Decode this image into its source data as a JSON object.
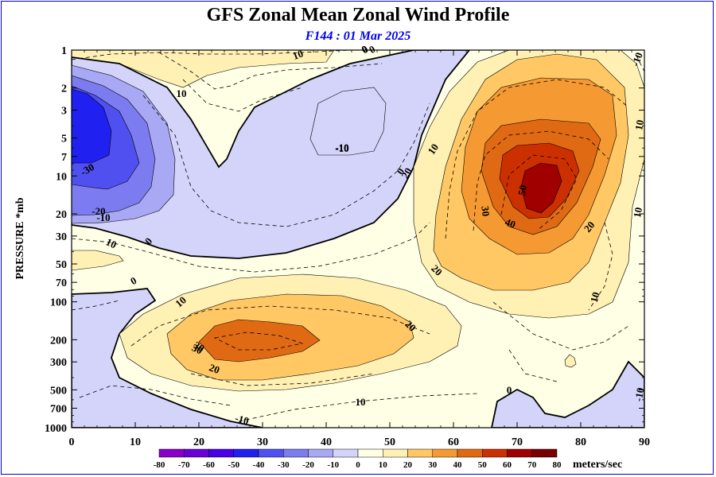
{
  "chart_data": {
    "type": "heatmap",
    "title": "GFS Zonal Mean Zonal Wind Profile",
    "subtitle": "F144 : 01 Mar 2025",
    "ylabel": "PRESSURE *mb",
    "xlabel": "",
    "x_ticks": [
      0,
      10,
      20,
      30,
      40,
      50,
      60,
      70,
      80,
      90
    ],
    "y_ticks": [
      1,
      2,
      3,
      5,
      7,
      10,
      20,
      30,
      50,
      70,
      100,
      200,
      300,
      500,
      700,
      1000
    ],
    "xlim": [
      0,
      90
    ],
    "ylim": [
      1000,
      1
    ],
    "y_scale": "log",
    "colorbar": {
      "unit_label": "meters/sec",
      "levels": [
        -80,
        -70,
        -60,
        -50,
        -40,
        -30,
        -20,
        -10,
        0,
        10,
        20,
        30,
        40,
        50,
        60,
        70,
        80
      ],
      "colors": [
        "#8a00c8",
        "#6a00d8",
        "#4a00e8",
        "#2020f0",
        "#5050f0",
        "#7c7cf0",
        "#a8a8f4",
        "#d4d4fa",
        "#ffffe6",
        "#fff0b4",
        "#ffc864",
        "#f59a32",
        "#e06a14",
        "#cc3000",
        "#a00000",
        "#780000",
        "#9a7832"
      ]
    },
    "contour_labels": [
      "10",
      "0",
      "10",
      "20",
      "10",
      "0",
      "-10",
      "10",
      "30",
      "0",
      "0",
      "-30",
      "-20",
      "-10",
      "50",
      "30",
      "40",
      "20",
      "10",
      "10",
      "0",
      "20",
      "10",
      "0",
      "20",
      "10",
      "30",
      "20",
      "-10",
      "10",
      "-10",
      "-10",
      "-10",
      "0"
    ]
  }
}
